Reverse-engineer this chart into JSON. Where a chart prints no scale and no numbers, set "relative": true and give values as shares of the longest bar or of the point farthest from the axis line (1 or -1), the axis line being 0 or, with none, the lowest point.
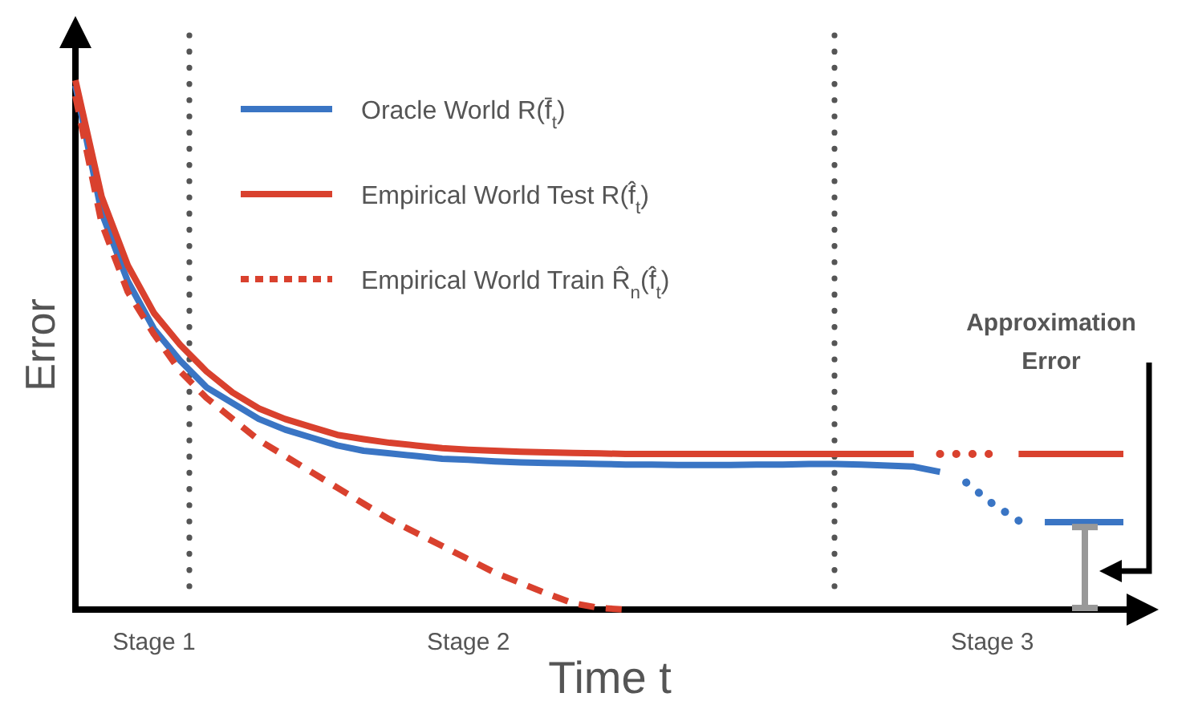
{
  "chart_data": {
    "type": "line",
    "relative": true,
    "xlabel": "Time t",
    "ylabel": "Error",
    "categories": [
      null,
      null,
      null,
      "Stage 1",
      null,
      null,
      null,
      null,
      null,
      null,
      null,
      null,
      null,
      null,
      null,
      "Stage 2",
      null,
      null,
      null,
      null,
      null,
      null,
      null,
      null,
      null,
      null,
      null,
      null,
      null,
      null,
      null,
      null,
      null,
      null,
      null,
      "Stage 3",
      null,
      null,
      null,
      null,
      null
    ],
    "tick_labels": "x",
    "legend": "top left",
    "marker": "none",
    "annotations": [
      "Approximation Error"
    ],
    "series": [
      {
        "name": "Oracle World R(f̄$_{t}$)",
        "color": "#3a75c4",
        "line_style": "solid",
        "values": [
          0.99,
          0.75,
          0.62,
          0.53,
          0.47,
          0.42,
          0.39,
          0.36,
          0.34,
          0.325,
          0.31,
          0.3,
          0.295,
          0.29,
          0.285,
          0.283,
          0.28,
          0.278,
          0.277,
          0.276,
          0.275,
          0.274,
          0.274,
          0.273,
          0.273,
          0.273,
          0.274,
          0.274,
          0.275,
          0.275,
          0.274,
          0.272,
          0.27,
          0.26,
          null,
          null,
          null,
          null,
          null,
          null,
          null
        ]
      },
      {
        "color": "#3a75c4",
        "line_style": "dotted",
        "values": [
          null,
          null,
          null,
          null,
          null,
          null,
          null,
          null,
          null,
          null,
          null,
          null,
          null,
          null,
          null,
          null,
          null,
          null,
          null,
          null,
          null,
          null,
          null,
          null,
          null,
          null,
          null,
          null,
          null,
          null,
          null,
          null,
          null,
          null,
          0.24,
          0.2,
          0.168,
          null,
          null,
          null,
          null
        ]
      },
      {
        "color": "#3a75c4",
        "line_style": "solid",
        "values": [
          null,
          null,
          null,
          null,
          null,
          null,
          null,
          null,
          null,
          null,
          null,
          null,
          null,
          null,
          null,
          null,
          null,
          null,
          null,
          null,
          null,
          null,
          null,
          null,
          null,
          null,
          null,
          null,
          null,
          null,
          null,
          null,
          null,
          null,
          null,
          null,
          null,
          0.165,
          0.165,
          0.165,
          0.165
        ]
      },
      {
        "name": "Empirical World Test R(f̂$_{t}$)",
        "color": "#d9412e",
        "line_style": "solid",
        "values": [
          1,
          0.78,
          0.65,
          0.56,
          0.5,
          0.45,
          0.41,
          0.38,
          0.36,
          0.345,
          0.33,
          0.322,
          0.315,
          0.31,
          0.305,
          0.302,
          0.3,
          0.298,
          0.297,
          0.296,
          0.295,
          0.294,
          0.294,
          0.294,
          0.294,
          0.294,
          0.294,
          0.294,
          0.294,
          0.294,
          0.294,
          0.294,
          0.294,
          null,
          null,
          null,
          null,
          null,
          null,
          null,
          null
        ]
      },
      {
        "color": "#d9412e",
        "line_style": "dotted",
        "values": [
          null,
          null,
          null,
          null,
          null,
          null,
          null,
          null,
          null,
          null,
          null,
          null,
          null,
          null,
          null,
          null,
          null,
          null,
          null,
          null,
          null,
          null,
          null,
          null,
          null,
          null,
          null,
          null,
          null,
          null,
          null,
          null,
          null,
          0.294,
          0.294,
          0.294,
          null,
          null,
          null,
          null,
          null
        ]
      },
      {
        "color": "#d9412e",
        "line_style": "solid",
        "values": [
          null,
          null,
          null,
          null,
          null,
          null,
          null,
          null,
          null,
          null,
          null,
          null,
          null,
          null,
          null,
          null,
          null,
          null,
          null,
          null,
          null,
          null,
          null,
          null,
          null,
          null,
          null,
          null,
          null,
          null,
          null,
          null,
          null,
          null,
          null,
          null,
          0.294,
          0.294,
          0.294,
          0.294,
          0.294
        ]
      },
      {
        "name": "Empirical World Train R̂$_{n}$(f̂$_{t}$)",
        "color": "#d9412e",
        "line_style": "dashed",
        "values": [
          0.97,
          0.73,
          0.6,
          0.52,
          0.45,
          0.4,
          0.36,
          0.32,
          0.29,
          0.26,
          0.23,
          0.2,
          0.17,
          0.145,
          0.12,
          0.095,
          0.07,
          0.05,
          0.03,
          0.012,
          0.003,
          0,
          null,
          null,
          null,
          null,
          null,
          null,
          null,
          null,
          null,
          null,
          null,
          null,
          null,
          null,
          null,
          null,
          null,
          null,
          null
        ]
      }
    ]
  }
}
